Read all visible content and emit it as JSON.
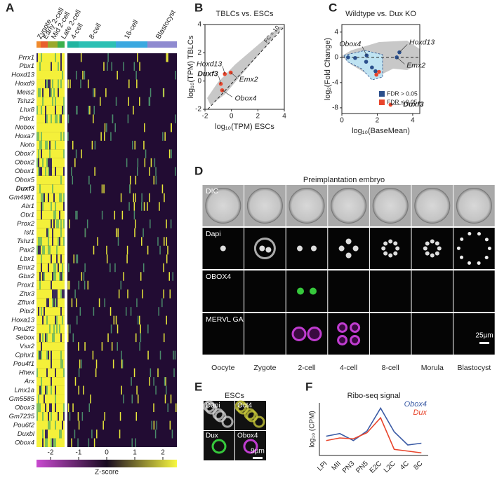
{
  "panel_labels": [
    "A",
    "B",
    "C",
    "D",
    "E",
    "F"
  ],
  "heatmap": {
    "stages": [
      "Zygote",
      "Early 2-cell",
      "Mid 2-cell",
      "Late 2-cell",
      "4-cell",
      "8-cell",
      "16-cell",
      "Blastocyst"
    ],
    "genes": [
      "Prrx1",
      "Pbx1",
      "Hoxd13",
      "Hoxd9",
      "Meis2",
      "Tshz2",
      "Lhx8",
      "Pdx1",
      "Nobox",
      "Hoxa7",
      "Noto",
      "Obox7",
      "Obox2",
      "Obox1",
      "Obox5",
      "Duxf3",
      "Gm4981",
      "Alx1",
      "Otx1",
      "Prox2",
      "Isl1",
      "Tshz1",
      "Pax2",
      "Lbx1",
      "Emx2",
      "Gbx2",
      "Prox1",
      "Zhx3",
      "Zfhx4",
      "Pitx2",
      "Hoxa13",
      "Pou2f2",
      "Sebox",
      "Vsx2",
      "Cphx1",
      "Pou4f1",
      "Hhex",
      "Arx",
      "Lmx1a",
      "Gm5585",
      "Obox3",
      "Gm7235",
      "Pou6f2",
      "Duxbl",
      "Obox4"
    ],
    "colorbar_label": "Z-score",
    "colorbar_lim": [
      -2.5,
      2.5
    ],
    "colorbar_ticks": [
      -2,
      -1,
      0,
      1,
      2
    ]
  },
  "chart_data": [
    {
      "type": "scatter",
      "title": "TBLCs vs. ESCs",
      "x_label": "log₁₀(TPM) ESCs",
      "y_label": "log₁₀(TPM) TBLCs",
      "annotation": "FC = 10",
      "xlim": [
        -2,
        4
      ],
      "ylim": [
        -2,
        4
      ],
      "xticks": [
        -2,
        0,
        2,
        4
      ],
      "yticks": [
        -2,
        0,
        2,
        4
      ],
      "series": [
        {
          "color": "#e8452c",
          "x": [
            -0.8,
            -0.5,
            -0.05,
            -0.7
          ],
          "values": [
            -0.2,
            0.5,
            0.6,
            -0.65
          ],
          "point_labels": [
            "Duxf3",
            "Hoxd13",
            "Emx2",
            "Obox4"
          ]
        }
      ]
    },
    {
      "type": "scatter",
      "title": "Wildtype vs. Dux KO",
      "x_label": "log₁₀(BaseMean)",
      "y_label": "log₂(Fold Change)",
      "xlim": [
        0,
        4.4
      ],
      "ylim": [
        -8.9,
        5.2
      ],
      "xticks": [
        0,
        2,
        4
      ],
      "yticks": [
        4,
        0,
        -4,
        -8
      ],
      "legend": "lower right",
      "series": [
        {
          "name": "FDR > 0.05",
          "color": "#2b4f8c",
          "x": [
            0.35,
            0.75,
            1.37,
            1.7,
            1.9,
            1.4,
            3.25,
            3.1
          ],
          "values": [
            0,
            -0.1,
            -0.7,
            -1.6,
            -2.2,
            0.3,
            0.8,
            0
          ],
          "point_labels": [
            null,
            null,
            null,
            null,
            null,
            "Obox4",
            "Hoxd13",
            "Emx2"
          ]
        },
        {
          "name": "FDR ≤ 0.05",
          "color": "#e8452c",
          "x": [
            1.95,
            2.1,
            2.75
          ],
          "values": [
            -2.75,
            -2.3,
            -7.5
          ],
          "point_labels": [
            null,
            null,
            "Duxf3"
          ]
        }
      ]
    },
    {
      "type": "line",
      "title": "Ribo-seq signal",
      "y_label": "log₁₀ (CPM)",
      "categories": [
        "LPI",
        "MII",
        "PN3",
        "PN5",
        "E2C",
        "L2C",
        "4C",
        "8C"
      ],
      "ylim": [
        -0.2,
        2.8
      ],
      "series": [
        {
          "name": "Obox4",
          "color": "#3b5ba5",
          "values": [
            0.9,
            1.05,
            0.65,
            1.2,
            2.5,
            1.15,
            0.4,
            0.5
          ]
        },
        {
          "name": "Dux",
          "color": "#e8452c",
          "values": [
            0.65,
            0.8,
            0.75,
            1.1,
            1.95,
            0.15,
            0.05,
            -0.05
          ]
        }
      ]
    }
  ],
  "microscopy": {
    "title": "Preimplantation embryo",
    "rows": [
      "DIC",
      "Dapi",
      "OBOX4",
      "MERVL GAG"
    ],
    "columns": [
      "Oocyte",
      "Zygote",
      "2-cell",
      "4-cell",
      "8-cell",
      "Morula",
      "Blastocyst"
    ],
    "scale_bar": "25µm"
  },
  "esc_panel": {
    "title": "ESCs",
    "channels": [
      "Dapi",
      "Oct4",
      "Dux",
      "Obox4"
    ],
    "scale_bar": "9µm"
  }
}
